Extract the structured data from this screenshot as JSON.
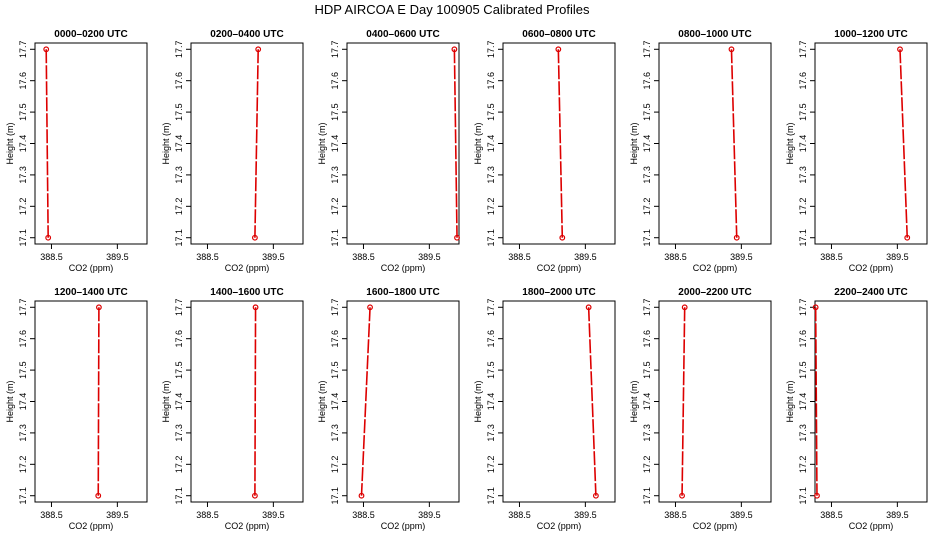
{
  "title": "HDP AIRCOA E  Day 100905  Calibrated Profiles",
  "colors": {
    "series": "#dd0000",
    "axis": "#000000"
  },
  "chart_data": [
    {
      "type": "line",
      "title": "0000–0200 UTC",
      "xlabel": "CO2 (ppm)",
      "ylabel": "Height (m)",
      "xlim": [
        388.25,
        389.95
      ],
      "ylim": [
        17.08,
        17.72
      ],
      "x_ticks": [
        "388.5",
        "389.5"
      ],
      "y_ticks": [
        "17.1",
        "17.2",
        "17.3",
        "17.4",
        "17.5",
        "17.6",
        "17.7"
      ],
      "series": [
        {
          "x": [
            388.42,
            388.45
          ],
          "y": [
            17.7,
            17.1
          ]
        }
      ]
    },
    {
      "type": "line",
      "title": "0200–0400 UTC",
      "xlabel": "CO2 (ppm)",
      "ylabel": "Height (m)",
      "xlim": [
        388.25,
        389.95
      ],
      "ylim": [
        17.08,
        17.72
      ],
      "x_ticks": [
        "388.5",
        "389.5"
      ],
      "y_ticks": [
        "17.1",
        "17.2",
        "17.3",
        "17.4",
        "17.5",
        "17.6",
        "17.7"
      ],
      "series": [
        {
          "x": [
            389.27,
            389.22
          ],
          "y": [
            17.7,
            17.1
          ]
        }
      ]
    },
    {
      "type": "line",
      "title": "0400–0600 UTC",
      "xlabel": "CO2 (ppm)",
      "ylabel": "Height (m)",
      "xlim": [
        388.25,
        389.95
      ],
      "ylim": [
        17.08,
        17.72
      ],
      "x_ticks": [
        "388.5",
        "389.5"
      ],
      "y_ticks": [
        "17.1",
        "17.2",
        "17.3",
        "17.4",
        "17.5",
        "17.6",
        "17.7"
      ],
      "series": [
        {
          "x": [
            389.88,
            389.92
          ],
          "y": [
            17.7,
            17.1
          ]
        }
      ]
    },
    {
      "type": "line",
      "title": "0600–0800 UTC",
      "xlabel": "CO2 (ppm)",
      "ylabel": "Height (m)",
      "xlim": [
        388.25,
        389.95
      ],
      "ylim": [
        17.08,
        17.72
      ],
      "x_ticks": [
        "388.5",
        "389.5"
      ],
      "y_ticks": [
        "17.1",
        "17.2",
        "17.3",
        "17.4",
        "17.5",
        "17.6",
        "17.7"
      ],
      "series": [
        {
          "x": [
            389.09,
            389.15
          ],
          "y": [
            17.7,
            17.1
          ]
        }
      ]
    },
    {
      "type": "line",
      "title": "0800–1000 UTC",
      "xlabel": "CO2 (ppm)",
      "ylabel": "Height (m)",
      "xlim": [
        388.25,
        389.95
      ],
      "ylim": [
        17.08,
        17.72
      ],
      "x_ticks": [
        "388.5",
        "389.5"
      ],
      "y_ticks": [
        "17.1",
        "17.2",
        "17.3",
        "17.4",
        "17.5",
        "17.6",
        "17.7"
      ],
      "series": [
        {
          "x": [
            389.35,
            389.43
          ],
          "y": [
            17.7,
            17.1
          ]
        }
      ]
    },
    {
      "type": "line",
      "title": "1000–1200 UTC",
      "xlabel": "CO2 (ppm)",
      "ylabel": "Height (m)",
      "xlim": [
        388.25,
        389.95
      ],
      "ylim": [
        17.08,
        17.72
      ],
      "x_ticks": [
        "388.5",
        "389.5"
      ],
      "y_ticks": [
        "17.1",
        "17.2",
        "17.3",
        "17.4",
        "17.5",
        "17.6",
        "17.7"
      ],
      "series": [
        {
          "x": [
            389.54,
            389.65
          ],
          "y": [
            17.7,
            17.1
          ]
        }
      ]
    },
    {
      "type": "line",
      "title": "1200–1400 UTC",
      "xlabel": "CO2 (ppm)",
      "ylabel": "Height (m)",
      "xlim": [
        388.25,
        389.95
      ],
      "ylim": [
        17.08,
        17.72
      ],
      "x_ticks": [
        "388.5",
        "389.5"
      ],
      "y_ticks": [
        "17.1",
        "17.2",
        "17.3",
        "17.4",
        "17.5",
        "17.6",
        "17.7"
      ],
      "series": [
        {
          "x": [
            389.22,
            389.21
          ],
          "y": [
            17.7,
            17.1
          ]
        }
      ]
    },
    {
      "type": "line",
      "title": "1400–1600 UTC",
      "xlabel": "CO2 (ppm)",
      "ylabel": "Height (m)",
      "xlim": [
        388.25,
        389.95
      ],
      "ylim": [
        17.08,
        17.72
      ],
      "x_ticks": [
        "388.5",
        "389.5"
      ],
      "y_ticks": [
        "17.1",
        "17.2",
        "17.3",
        "17.4",
        "17.5",
        "17.6",
        "17.7"
      ],
      "series": [
        {
          "x": [
            389.23,
            389.22
          ],
          "y": [
            17.7,
            17.1
          ]
        }
      ]
    },
    {
      "type": "line",
      "title": "1600–1800 UTC",
      "xlabel": "CO2 (ppm)",
      "ylabel": "Height (m)",
      "xlim": [
        388.25,
        389.95
      ],
      "ylim": [
        17.08,
        17.72
      ],
      "x_ticks": [
        "388.5",
        "389.5"
      ],
      "y_ticks": [
        "17.1",
        "17.2",
        "17.3",
        "17.4",
        "17.5",
        "17.6",
        "17.7"
      ],
      "series": [
        {
          "x": [
            388.6,
            388.47
          ],
          "y": [
            17.7,
            17.1
          ]
        }
      ]
    },
    {
      "type": "line",
      "title": "1800–2000 UTC",
      "xlabel": "CO2 (ppm)",
      "ylabel": "Height (m)",
      "xlim": [
        388.25,
        389.95
      ],
      "ylim": [
        17.08,
        17.72
      ],
      "x_ticks": [
        "388.5",
        "389.5"
      ],
      "y_ticks": [
        "17.1",
        "17.2",
        "17.3",
        "17.4",
        "17.5",
        "17.6",
        "17.7"
      ],
      "series": [
        {
          "x": [
            389.55,
            389.66
          ],
          "y": [
            17.7,
            17.1
          ]
        }
      ]
    },
    {
      "type": "line",
      "title": "2000–2200 UTC",
      "xlabel": "CO2 (ppm)",
      "ylabel": "Height (m)",
      "xlim": [
        388.25,
        389.95
      ],
      "ylim": [
        17.08,
        17.72
      ],
      "x_ticks": [
        "388.5",
        "389.5"
      ],
      "y_ticks": [
        "17.1",
        "17.2",
        "17.3",
        "17.4",
        "17.5",
        "17.6",
        "17.7"
      ],
      "series": [
        {
          "x": [
            388.64,
            388.6
          ],
          "y": [
            17.7,
            17.1
          ]
        }
      ]
    },
    {
      "type": "line",
      "title": "2200–2400 UTC",
      "xlabel": "CO2 (ppm)",
      "ylabel": "Height (m)",
      "xlim": [
        388.25,
        389.95
      ],
      "ylim": [
        17.08,
        17.72
      ],
      "x_ticks": [
        "388.5",
        "389.5"
      ],
      "y_ticks": [
        "17.1",
        "17.2",
        "17.3",
        "17.4",
        "17.5",
        "17.6",
        "17.7"
      ],
      "series": [
        {
          "x": [
            388.26,
            388.28
          ],
          "y": [
            17.7,
            17.1
          ]
        }
      ]
    }
  ]
}
